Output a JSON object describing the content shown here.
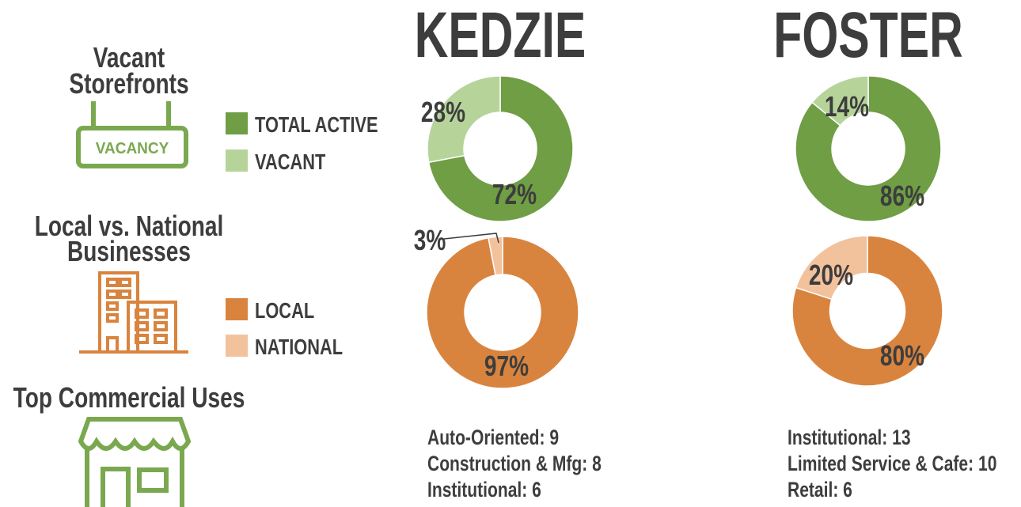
{
  "sections": [
    {
      "title_lines": [
        "Vacant",
        "Storefronts"
      ],
      "icon_label": "VACANCY",
      "legend": [
        "TOTAL ACTIVE",
        "VACANT"
      ]
    },
    {
      "title_lines": [
        "Local vs. National",
        "Businesses"
      ],
      "legend": [
        "LOCAL",
        "NATIONAL"
      ]
    },
    {
      "title_lines": [
        "Top Commercial Uses"
      ]
    }
  ],
  "columns": [
    {
      "title": "KEDZIE",
      "top_uses": [
        "Auto-Oriented: 9",
        "Construction & Mfg: 8",
        "Institutional: 6"
      ]
    },
    {
      "title": "FOSTER",
      "top_uses": [
        "Institutional: 13",
        "Limited Service & Cafe: 10",
        "Retail: 6"
      ]
    }
  ],
  "chart_data": [
    {
      "type": "pie",
      "values": [
        72,
        28
      ],
      "value_labels": [
        "72%",
        "28%"
      ],
      "colors": [
        "#6f9e45",
        "#b6d49a"
      ]
    },
    {
      "type": "pie",
      "values": [
        97,
        3
      ],
      "value_labels": [
        "97%",
        "3%"
      ],
      "colors": [
        "#d9843e",
        "#f2c29d"
      ]
    },
    {
      "type": "pie",
      "values": [
        86,
        14
      ],
      "value_labels": [
        "86%",
        "14%"
      ],
      "colors": [
        "#6f9e45",
        "#b6d49a"
      ]
    },
    {
      "type": "pie",
      "values": [
        80,
        20
      ],
      "value_labels": [
        "80%",
        "20%"
      ],
      "colors": [
        "#d9843e",
        "#f2c29d"
      ]
    }
  ]
}
